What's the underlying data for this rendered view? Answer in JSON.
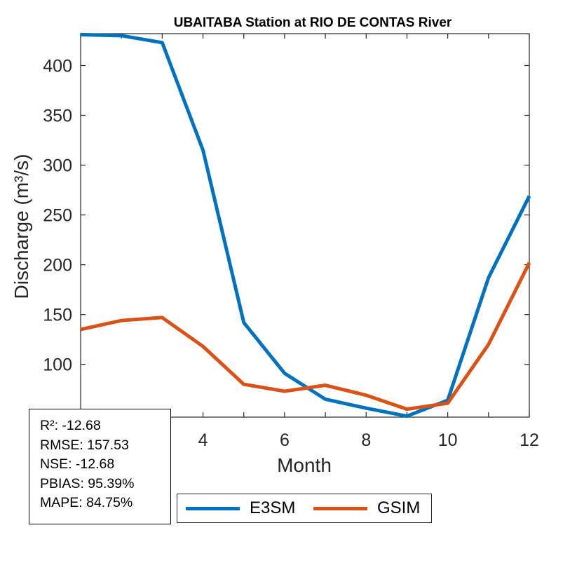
{
  "chart_data": {
    "type": "line",
    "title": "UBAITABA  Station at  RIO DE CONTAS  River",
    "xlabel": "Month",
    "ylabel": "Discharge (m³/s)",
    "xlim": [
      1,
      12
    ],
    "ylim": [
      47,
      432
    ],
    "xticks": [
      4,
      6,
      8,
      10,
      12
    ],
    "yticks": [
      100,
      150,
      200,
      250,
      300,
      350,
      400
    ],
    "x": [
      1,
      2,
      3,
      4,
      5,
      6,
      7,
      8,
      9,
      10,
      11,
      12
    ],
    "series": [
      {
        "name": "E3SM",
        "color": "#0072BD",
        "values": [
          431,
          430,
          423,
          315,
          142,
          91,
          65,
          56,
          48,
          64,
          187,
          269
        ]
      },
      {
        "name": "GSIM",
        "color": "#D95319",
        "values": [
          135,
          144,
          147,
          118,
          80,
          73,
          79,
          69,
          55,
          61,
          120,
          202
        ]
      }
    ],
    "grid": false,
    "legend_position": "bottom"
  },
  "stats": {
    "r2": "R²: -12.68",
    "rmse": "RMSE: 157.53",
    "nse": "NSE: -12.68",
    "pbias": "PBIAS: 95.39%",
    "mape": "MAPE: 84.75%"
  },
  "legend": {
    "items": [
      "E3SM",
      "GSIM"
    ]
  }
}
